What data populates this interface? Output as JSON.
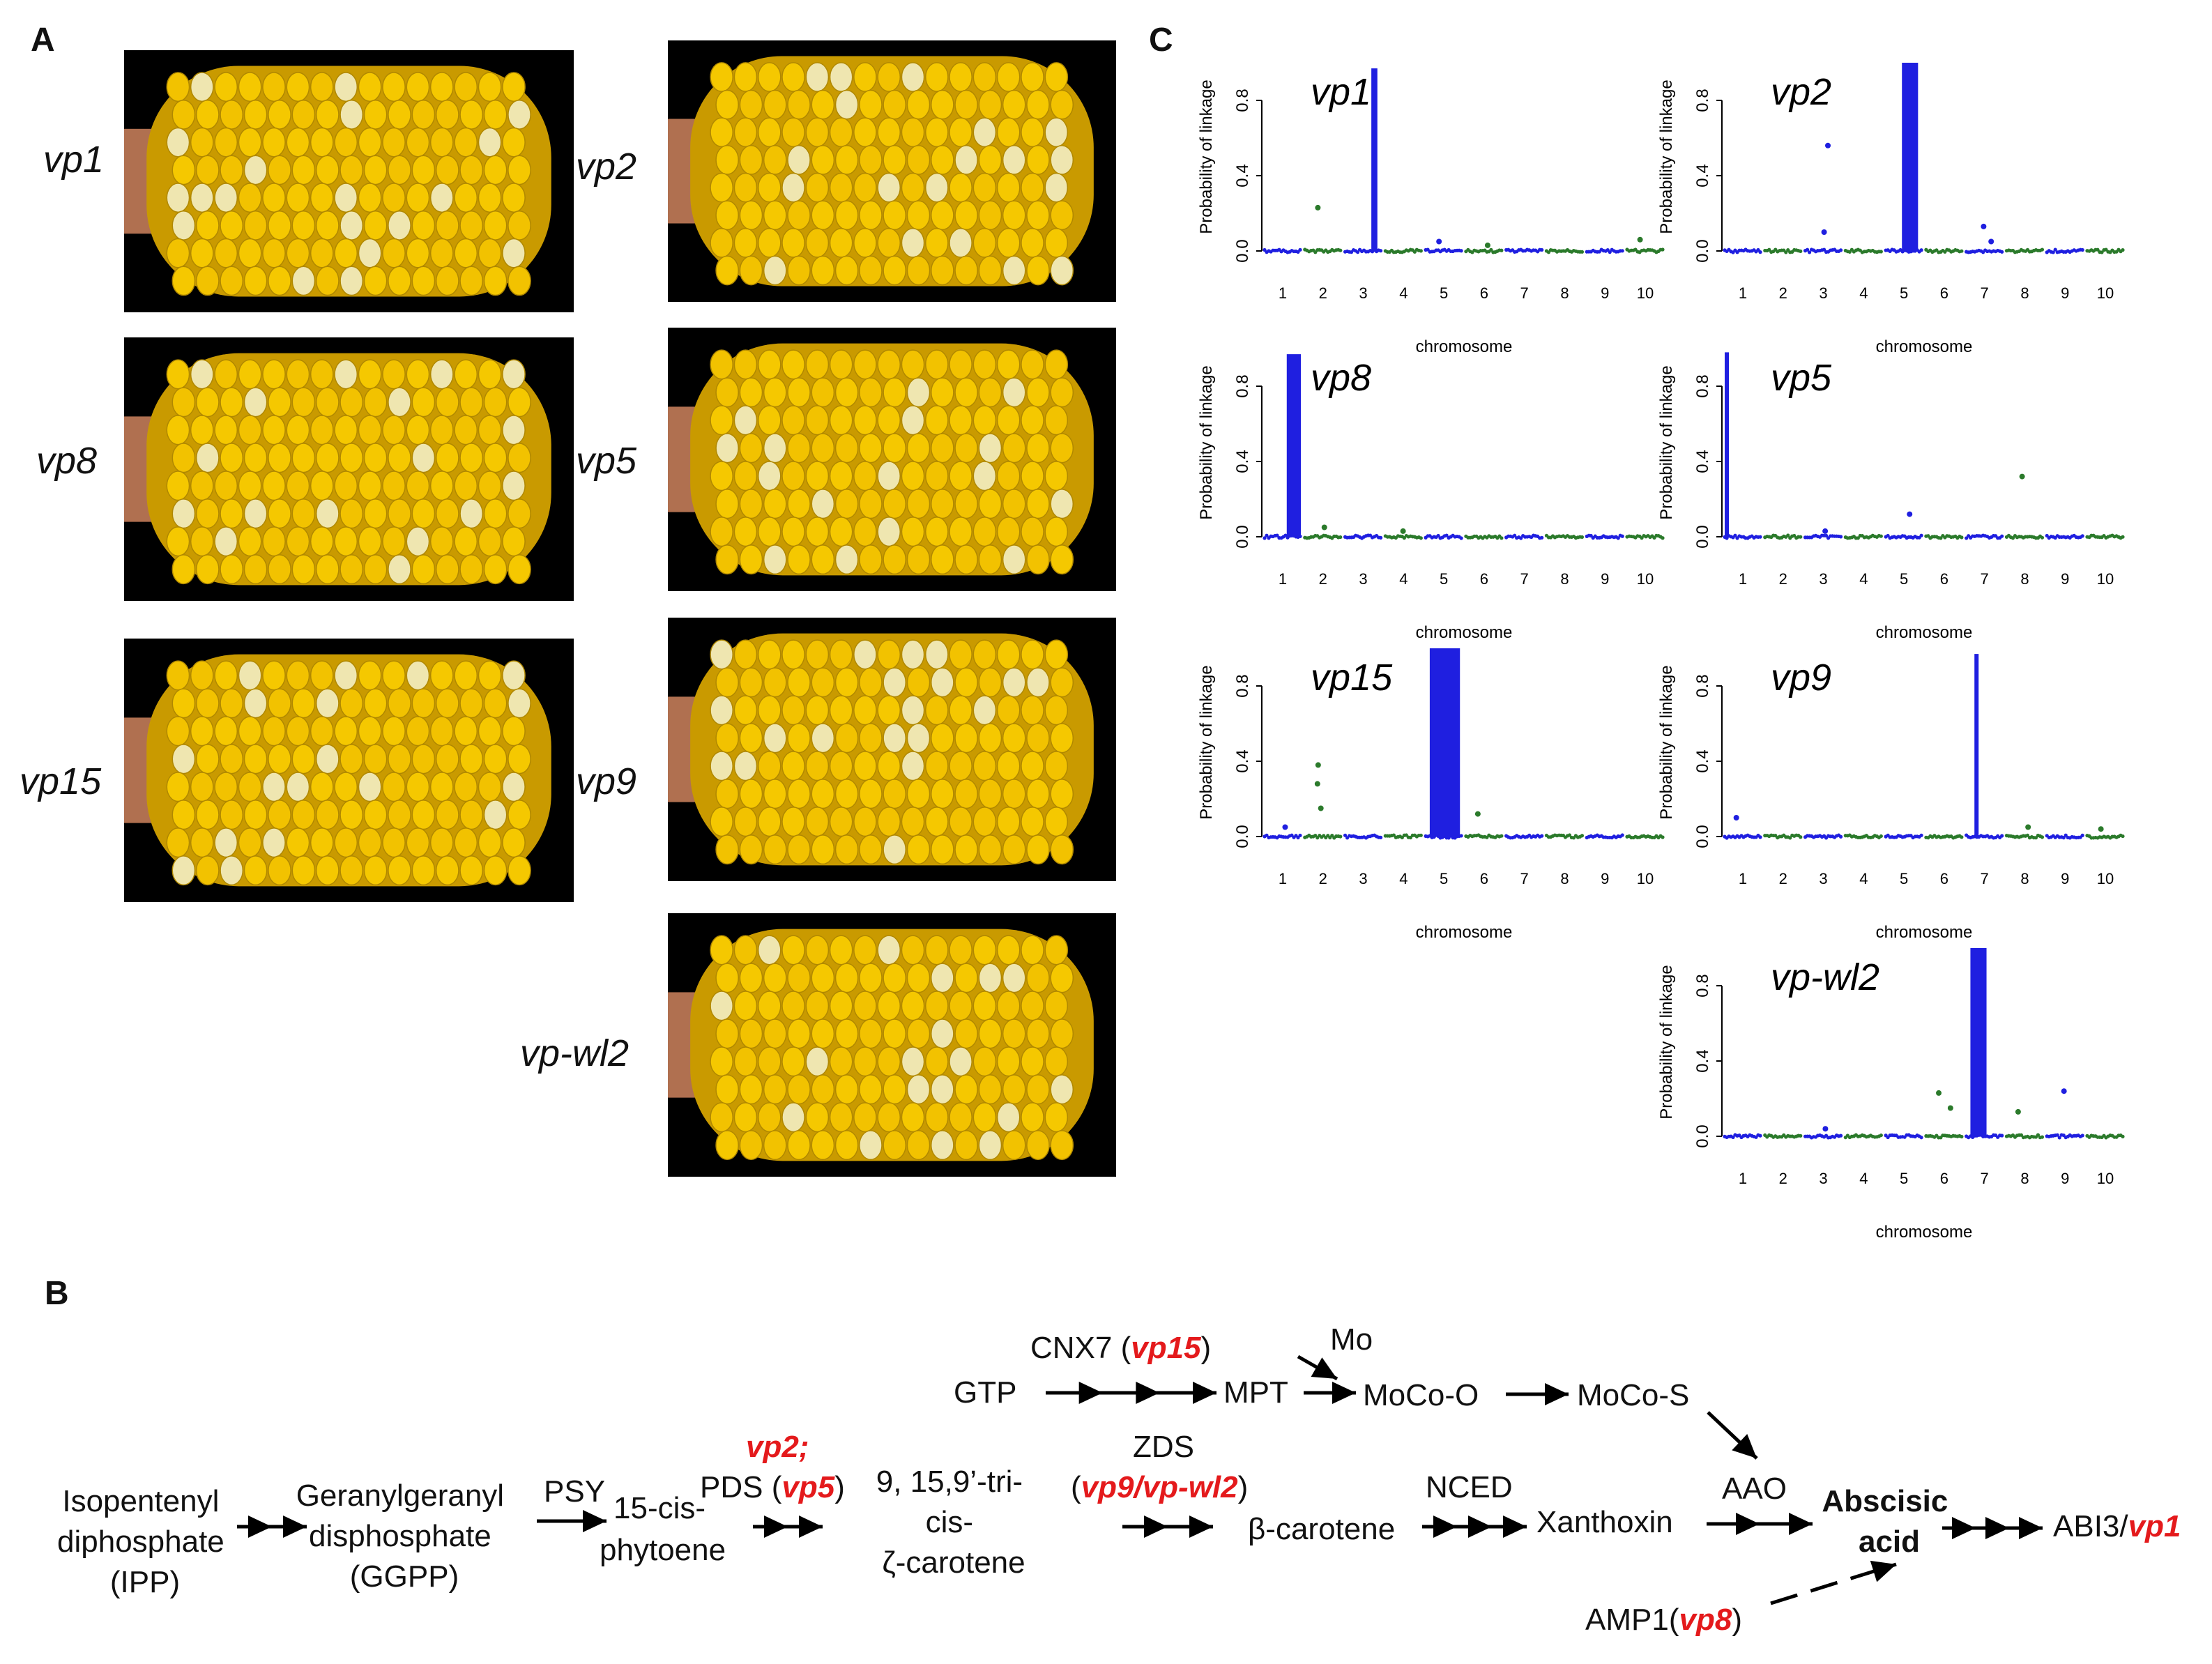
{
  "panels": {
    "a": "A",
    "b": "B",
    "c": "C"
  },
  "ears": [
    {
      "label": "vp1"
    },
    {
      "label": "vp2"
    },
    {
      "label": "vp8"
    },
    {
      "label": "vp5"
    },
    {
      "label": "vp15"
    },
    {
      "label": "vp9"
    },
    {
      "label": "vp-wl2"
    }
  ],
  "colors": {
    "chr_odd": "#1f1fe0",
    "chr_even": "#2b7a2b",
    "kernel": "#f2c200",
    "cob": "#b07050",
    "accent_red": "#e41a1c"
  },
  "chart_data": [
    {
      "type": "scatter",
      "title": "vp1",
      "ylabel": "Probability of linkage",
      "xlabel": "chromosome",
      "x_ticks": [
        "1",
        "2",
        "3",
        "4",
        "5",
        "6",
        "7",
        "8",
        "9",
        "10"
      ],
      "y_ticks": [
        "0.0",
        "0.4",
        "0.8"
      ],
      "ylim": [
        0,
        1
      ],
      "peak": {
        "chromosome": 3,
        "from": 3.2,
        "to": 3.35,
        "value": 0.97
      },
      "outliers": [
        {
          "chromosome": 2,
          "value": 0.23
        },
        {
          "chromosome": 5,
          "value": 0.05
        },
        {
          "chromosome": 6,
          "value": 0.03
        },
        {
          "chromosome": 10,
          "value": 0.06
        }
      ]
    },
    {
      "type": "scatter",
      "title": "vp2",
      "ylabel": "Probability of linkage",
      "xlabel": "chromosome",
      "x_ticks": [
        "1",
        "2",
        "3",
        "4",
        "5",
        "6",
        "7",
        "8",
        "9",
        "10"
      ],
      "y_ticks": [
        "0.0",
        "0.4",
        "0.8"
      ],
      "ylim": [
        0,
        1
      ],
      "peak": {
        "chromosome": 5,
        "from": 4.95,
        "to": 5.35,
        "value": 1.0
      },
      "outliers": [
        {
          "chromosome": 3,
          "value": 0.56
        },
        {
          "chromosome": 3,
          "value": 0.1
        },
        {
          "chromosome": 7,
          "value": 0.13
        },
        {
          "chromosome": 7,
          "value": 0.05
        }
      ]
    },
    {
      "type": "scatter",
      "title": "vp8",
      "ylabel": "Probability of linkage",
      "xlabel": "chromosome",
      "x_ticks": [
        "1",
        "2",
        "3",
        "4",
        "5",
        "6",
        "7",
        "8",
        "9",
        "10"
      ],
      "y_ticks": [
        "0.0",
        "0.4",
        "0.8"
      ],
      "ylim": [
        0,
        1
      ],
      "peak": {
        "chromosome": 1,
        "from": 1.1,
        "to": 1.45,
        "value": 0.97
      },
      "outliers": [
        {
          "chromosome": 2,
          "value": 0.05
        },
        {
          "chromosome": 4,
          "value": 0.03
        }
      ]
    },
    {
      "type": "scatter",
      "title": "vp5",
      "ylabel": "Probability of linkage",
      "xlabel": "chromosome",
      "x_ticks": [
        "1",
        "2",
        "3",
        "4",
        "5",
        "6",
        "7",
        "8",
        "9",
        "10"
      ],
      "y_ticks": [
        "0.0",
        "0.4",
        "0.8"
      ],
      "ylim": [
        0,
        1
      ],
      "peak": {
        "chromosome": 1,
        "from": 0.55,
        "to": 0.65,
        "value": 0.98
      },
      "outliers": [
        {
          "chromosome": 5,
          "value": 0.12
        },
        {
          "chromosome": 8,
          "value": 0.32
        },
        {
          "chromosome": 3,
          "value": 0.03
        }
      ]
    },
    {
      "type": "scatter",
      "title": "vp15",
      "ylabel": "Probability of linkage",
      "xlabel": "chromosome",
      "x_ticks": [
        "1",
        "2",
        "3",
        "4",
        "5",
        "6",
        "7",
        "8",
        "9",
        "10"
      ],
      "y_ticks": [
        "0.0",
        "0.4",
        "0.8"
      ],
      "ylim": [
        0,
        1
      ],
      "peak": {
        "chromosome": 5,
        "from": 4.65,
        "to": 5.4,
        "value": 1.0
      },
      "outliers": [
        {
          "chromosome": 2,
          "value": 0.38
        },
        {
          "chromosome": 2,
          "value": 0.28
        },
        {
          "chromosome": 2,
          "value": 0.15
        },
        {
          "chromosome": 6,
          "value": 0.12
        },
        {
          "chromosome": 1,
          "value": 0.05
        }
      ]
    },
    {
      "type": "scatter",
      "title": "vp9",
      "ylabel": "Probability of linkage",
      "xlabel": "chromosome",
      "x_ticks": [
        "1",
        "2",
        "3",
        "4",
        "5",
        "6",
        "7",
        "8",
        "9",
        "10"
      ],
      "y_ticks": [
        "0.0",
        "0.4",
        "0.8"
      ],
      "ylim": [
        0,
        1
      ],
      "peak": {
        "chromosome": 7,
        "from": 6.75,
        "to": 6.85,
        "value": 0.97
      },
      "outliers": [
        {
          "chromosome": 1,
          "value": 0.1
        },
        {
          "chromosome": 8,
          "value": 0.05
        },
        {
          "chromosome": 10,
          "value": 0.04
        }
      ]
    },
    {
      "type": "scatter",
      "title": "vp-wl2",
      "ylabel": "Probability of linkage",
      "xlabel": "chromosome",
      "x_ticks": [
        "1",
        "2",
        "3",
        "4",
        "5",
        "6",
        "7",
        "8",
        "9",
        "10"
      ],
      "y_ticks": [
        "0.0",
        "0.4",
        "0.8"
      ],
      "ylim": [
        0,
        1
      ],
      "peak": {
        "chromosome": 7,
        "from": 6.65,
        "to": 7.05,
        "value": 1.0
      },
      "outliers": [
        {
          "chromosome": 6,
          "value": 0.23
        },
        {
          "chromosome": 6,
          "value": 0.15
        },
        {
          "chromosome": 8,
          "value": 0.13
        },
        {
          "chromosome": 9,
          "value": 0.24
        },
        {
          "chromosome": 3,
          "value": 0.04
        }
      ]
    }
  ],
  "pathway": {
    "ipp": [
      "Isopentenyl",
      "diphosphate",
      "(IPP)"
    ],
    "ggpp": [
      "Geranylgeranyl",
      "disphosphate",
      "(GGPP)"
    ],
    "psy": "PSY",
    "phytoene": [
      "15-cis-",
      "phytoene"
    ],
    "vp2": "vp2;",
    "pds": "PDS (",
    "vp5": "vp5",
    "close_paren": ")",
    "carotene_tri": [
      "9, 15,9’-tri-",
      "cis-",
      "ζ-carotene"
    ],
    "zds": "ZDS",
    "open_paren": "(",
    "vp9": "vp9/vp-wl2",
    "beta": "β-carotene",
    "nced": "NCED",
    "xanthoxin": "Xanthoxin",
    "aao": "AAO",
    "aba": [
      "Abscisic",
      "acid"
    ],
    "abi3": "ABI3/",
    "vp1": "vp1",
    "gtp": "GTP",
    "cnx7": "CNX7 (",
    "vp15": "vp15",
    "mpt": "MPT",
    "mo": "Mo",
    "mocoo": "MoCo-O",
    "mocos": "MoCo-S",
    "amp1": "AMP1(",
    "vp8": "vp8"
  }
}
